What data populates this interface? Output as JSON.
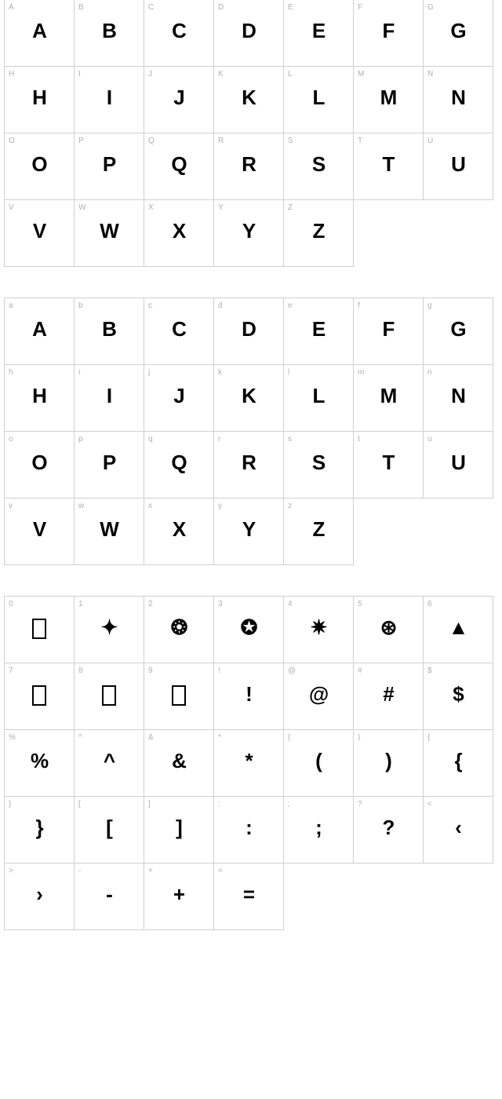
{
  "sections": [
    {
      "cells": [
        {
          "label": "A",
          "glyph": "A"
        },
        {
          "label": "B",
          "glyph": "B"
        },
        {
          "label": "C",
          "glyph": "C"
        },
        {
          "label": "D",
          "glyph": "D"
        },
        {
          "label": "E",
          "glyph": "E"
        },
        {
          "label": "F",
          "glyph": "F"
        },
        {
          "label": "G",
          "glyph": "G"
        },
        {
          "label": "H",
          "glyph": "H"
        },
        {
          "label": "I",
          "glyph": "I"
        },
        {
          "label": "J",
          "glyph": "J"
        },
        {
          "label": "K",
          "glyph": "K"
        },
        {
          "label": "L",
          "glyph": "L"
        },
        {
          "label": "M",
          "glyph": "M"
        },
        {
          "label": "N",
          "glyph": "N"
        },
        {
          "label": "O",
          "glyph": "O"
        },
        {
          "label": "P",
          "glyph": "P"
        },
        {
          "label": "Q",
          "glyph": "Q"
        },
        {
          "label": "R",
          "glyph": "R"
        },
        {
          "label": "S",
          "glyph": "S"
        },
        {
          "label": "T",
          "glyph": "T"
        },
        {
          "label": "U",
          "glyph": "U"
        },
        {
          "label": "V",
          "glyph": "V"
        },
        {
          "label": "W",
          "glyph": "W"
        },
        {
          "label": "X",
          "glyph": "X"
        },
        {
          "label": "Y",
          "glyph": "Y"
        },
        {
          "label": "Z",
          "glyph": "Z"
        },
        null,
        null
      ]
    },
    {
      "cells": [
        {
          "label": "a",
          "glyph": "A"
        },
        {
          "label": "b",
          "glyph": "B"
        },
        {
          "label": "c",
          "glyph": "C"
        },
        {
          "label": "d",
          "glyph": "D"
        },
        {
          "label": "e",
          "glyph": "E"
        },
        {
          "label": "f",
          "glyph": "F"
        },
        {
          "label": "g",
          "glyph": "G"
        },
        {
          "label": "h",
          "glyph": "H"
        },
        {
          "label": "i",
          "glyph": "I"
        },
        {
          "label": "j",
          "glyph": "J"
        },
        {
          "label": "k",
          "glyph": "K"
        },
        {
          "label": "l",
          "glyph": "L"
        },
        {
          "label": "m",
          "glyph": "M"
        },
        {
          "label": "n",
          "glyph": "N"
        },
        {
          "label": "o",
          "glyph": "O"
        },
        {
          "label": "p",
          "glyph": "P"
        },
        {
          "label": "q",
          "glyph": "Q"
        },
        {
          "label": "r",
          "glyph": "R"
        },
        {
          "label": "s",
          "glyph": "S"
        },
        {
          "label": "t",
          "glyph": "T"
        },
        {
          "label": "u",
          "glyph": "U"
        },
        {
          "label": "v",
          "glyph": "V"
        },
        {
          "label": "w",
          "glyph": "W"
        },
        {
          "label": "x",
          "glyph": "X"
        },
        {
          "label": "y",
          "glyph": "Y"
        },
        {
          "label": "z",
          "glyph": "Z"
        },
        null,
        null
      ]
    },
    {
      "cells": [
        {
          "label": "0",
          "glyph": "□",
          "box": true
        },
        {
          "label": "1",
          "glyph": "✦"
        },
        {
          "label": "2",
          "glyph": "❂"
        },
        {
          "label": "3",
          "glyph": "✪"
        },
        {
          "label": "4",
          "glyph": "✷"
        },
        {
          "label": "5",
          "glyph": "⊛"
        },
        {
          "label": "6",
          "glyph": "▲"
        },
        {
          "label": "7",
          "glyph": "□",
          "box": true
        },
        {
          "label": "8",
          "glyph": "□",
          "box": true
        },
        {
          "label": "9",
          "glyph": "□",
          "box": true
        },
        {
          "label": "!",
          "glyph": "!"
        },
        {
          "label": "@",
          "glyph": "@"
        },
        {
          "label": "#",
          "glyph": "#"
        },
        {
          "label": "$",
          "glyph": "$"
        },
        {
          "label": "%",
          "glyph": "%"
        },
        {
          "label": "^",
          "glyph": "^"
        },
        {
          "label": "&",
          "glyph": "&"
        },
        {
          "label": "*",
          "glyph": "*"
        },
        {
          "label": "(",
          "glyph": "("
        },
        {
          "label": ")",
          "glyph": ")"
        },
        {
          "label": "{",
          "glyph": "{"
        },
        {
          "label": "}",
          "glyph": "}"
        },
        {
          "label": "[",
          "glyph": "["
        },
        {
          "label": "]",
          "glyph": "]"
        },
        {
          "label": ":",
          "glyph": ":"
        },
        {
          "label": ";",
          "glyph": ";"
        },
        {
          "label": "?",
          "glyph": "?"
        },
        {
          "label": "<",
          "glyph": "‹"
        },
        {
          "label": ">",
          "glyph": "›"
        },
        {
          "label": "-",
          "glyph": "-"
        },
        {
          "label": "+",
          "glyph": "+"
        },
        {
          "label": "=",
          "glyph": "="
        },
        null,
        null,
        null
      ]
    }
  ]
}
